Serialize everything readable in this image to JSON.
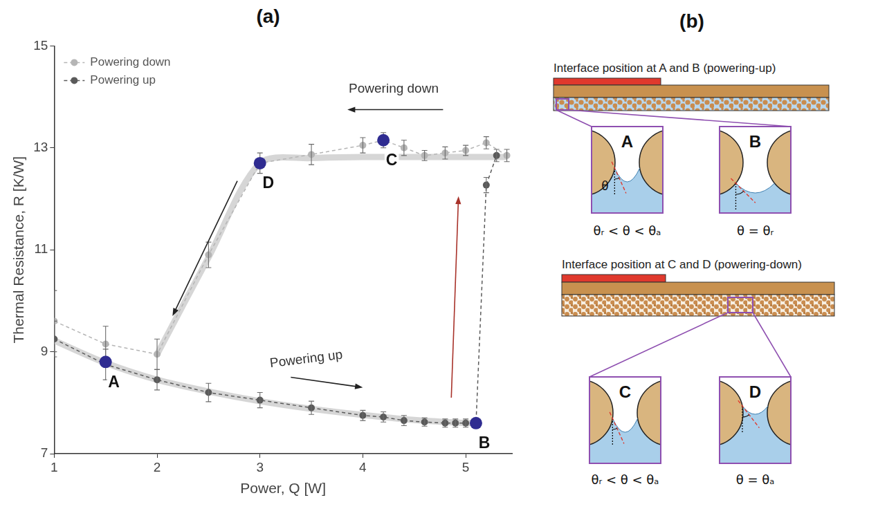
{
  "chart_data": {
    "type": "scatter",
    "title": "(a)",
    "x_label": "Power, Q [W]",
    "y_label": "Thermal Resistance, R [K/W]",
    "xlim": [
      1,
      5.45
    ],
    "xticks": [
      1,
      2,
      3,
      4,
      5
    ],
    "ylim": [
      7,
      15
    ],
    "yticks": [
      7,
      9,
      11,
      13,
      15
    ],
    "grid": false,
    "legend": "upper left",
    "marker": "circle",
    "line_style": "dashed",
    "series": [
      {
        "name": "Powering down",
        "color": "#b5b5b5",
        "x": [
          5.4,
          5.2,
          5.0,
          4.8,
          4.6,
          4.4,
          4.2,
          4.0,
          3.5,
          3.0,
          2.5,
          2.0,
          1.5,
          1.0
        ],
        "values": [
          12.85,
          13.1,
          12.95,
          12.9,
          12.85,
          13.0,
          13.15,
          13.05,
          12.87,
          12.7,
          10.9,
          8.95,
          9.15,
          9.6
        ],
        "errors": [
          0.12,
          0.12,
          0.1,
          0.12,
          0.1,
          0.15,
          0.15,
          0.15,
          0.2,
          0.2,
          0.25,
          0.3,
          0.35,
          0.6
        ],
        "trend": {
          "x": [
            2.0,
            2.5,
            3.0,
            3.5,
            4.0,
            4.5,
            5.0,
            5.4
          ],
          "values": [
            8.95,
            10.85,
            12.7,
            12.8,
            12.82,
            12.82,
            12.82,
            12.82
          ]
        }
      },
      {
        "name": "Powering up",
        "color": "#5a5a5a",
        "x": [
          1.0,
          1.5,
          2.0,
          2.5,
          3.0,
          3.5,
          4.0,
          4.2,
          4.4,
          4.6,
          4.8,
          4.9,
          5.0,
          5.1,
          5.2,
          5.3
        ],
        "values": [
          9.25,
          8.75,
          8.45,
          8.2,
          8.05,
          7.9,
          7.75,
          7.72,
          7.65,
          7.62,
          7.6,
          7.6,
          7.6,
          7.6,
          12.27,
          12.85
        ],
        "errors": [
          0.35,
          0.3,
          0.2,
          0.18,
          0.15,
          0.13,
          0.1,
          0.1,
          0.1,
          0.08,
          0.08,
          0.08,
          0.08,
          0.08,
          0.15,
          0.12
        ],
        "trend": {
          "x": [
            1.0,
            1.5,
            2.0,
            2.5,
            3.0,
            3.5,
            4.0,
            4.5,
            5.0,
            5.1
          ],
          "values": [
            9.22,
            8.78,
            8.45,
            8.22,
            8.03,
            7.88,
            7.76,
            7.66,
            7.6,
            7.6
          ]
        }
      }
    ],
    "annotations": [
      {
        "text": "A",
        "x": 1.5,
        "y": 8.8,
        "marker": "circle",
        "color": "#2f2c91"
      },
      {
        "text": "B",
        "x": 5.1,
        "y": 7.6,
        "marker": "circle",
        "color": "#2f2c91"
      },
      {
        "text": "C",
        "x": 4.2,
        "y": 13.15,
        "marker": "circle",
        "color": "#2f2c91"
      },
      {
        "text": "D",
        "x": 3.0,
        "y": 12.7,
        "marker": "circle",
        "color": "#2f2c91"
      },
      {
        "text": "Powering down",
        "x": 4.3,
        "y": 14.15
      },
      {
        "text": "Powering up",
        "x": 3.45,
        "y": 8.85
      }
    ]
  },
  "diagram": {
    "title": "(b)",
    "panels": [
      {
        "heading": "Interface position at A and B (powering-up)",
        "boxes": [
          {
            "label": "A",
            "angle_symbol": "θ",
            "caption": "θᵣ < θ < θₐ"
          },
          {
            "label": "B",
            "caption": "θ = θᵣ"
          }
        ]
      },
      {
        "heading": "Interface position at C and D (powering-down)",
        "boxes": [
          {
            "label": "C",
            "caption": "θᵣ < θ < θₐ"
          },
          {
            "label": "D",
            "caption": "θ = θₐ"
          }
        ]
      }
    ]
  }
}
